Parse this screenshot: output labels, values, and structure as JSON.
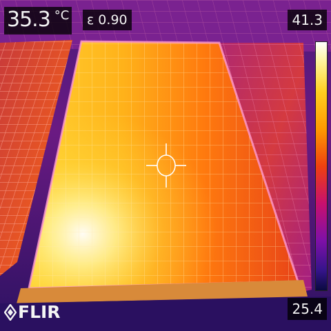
{
  "spot": {
    "value": "35.3",
    "unit": "°C"
  },
  "emissivity": {
    "label": "ε 0.90"
  },
  "scale": {
    "max": "41.3",
    "min": "25.4"
  },
  "brand": {
    "logo_text": "FLIR"
  },
  "palette": {
    "hot": "#ffffff",
    "warm": "#ffd020",
    "mid": "#f04010",
    "cool": "#c8106e",
    "cold": "#35148a"
  }
}
